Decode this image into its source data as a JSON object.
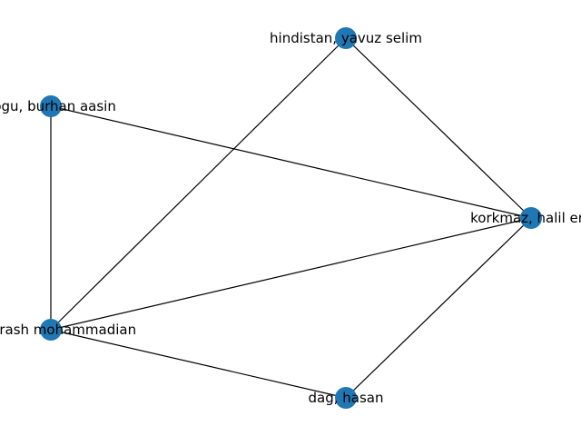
{
  "colors": {
    "node": "#1f77b4",
    "edge": "#000000",
    "background": "#ffffff"
  },
  "graph": {
    "nodes": [
      {
        "id": "hindistan",
        "label": "hindistan, yavuz selim"
      },
      {
        "id": "kogu",
        "label": "kogu, burhan aasin"
      },
      {
        "id": "korkmaz",
        "label": "korkmaz, halil ere"
      },
      {
        "id": "arash",
        "label": "ad, arash mohammadian"
      },
      {
        "id": "dag",
        "label": "dag, hasan"
      }
    ],
    "edges": [
      {
        "source": "hindistan",
        "target": "korkmaz"
      },
      {
        "source": "hindistan",
        "target": "arash"
      },
      {
        "source": "kogu",
        "target": "korkmaz"
      },
      {
        "source": "kogu",
        "target": "arash"
      },
      {
        "source": "arash",
        "target": "korkmaz"
      },
      {
        "source": "arash",
        "target": "dag"
      },
      {
        "source": "dag",
        "target": "korkmaz"
      }
    ]
  }
}
